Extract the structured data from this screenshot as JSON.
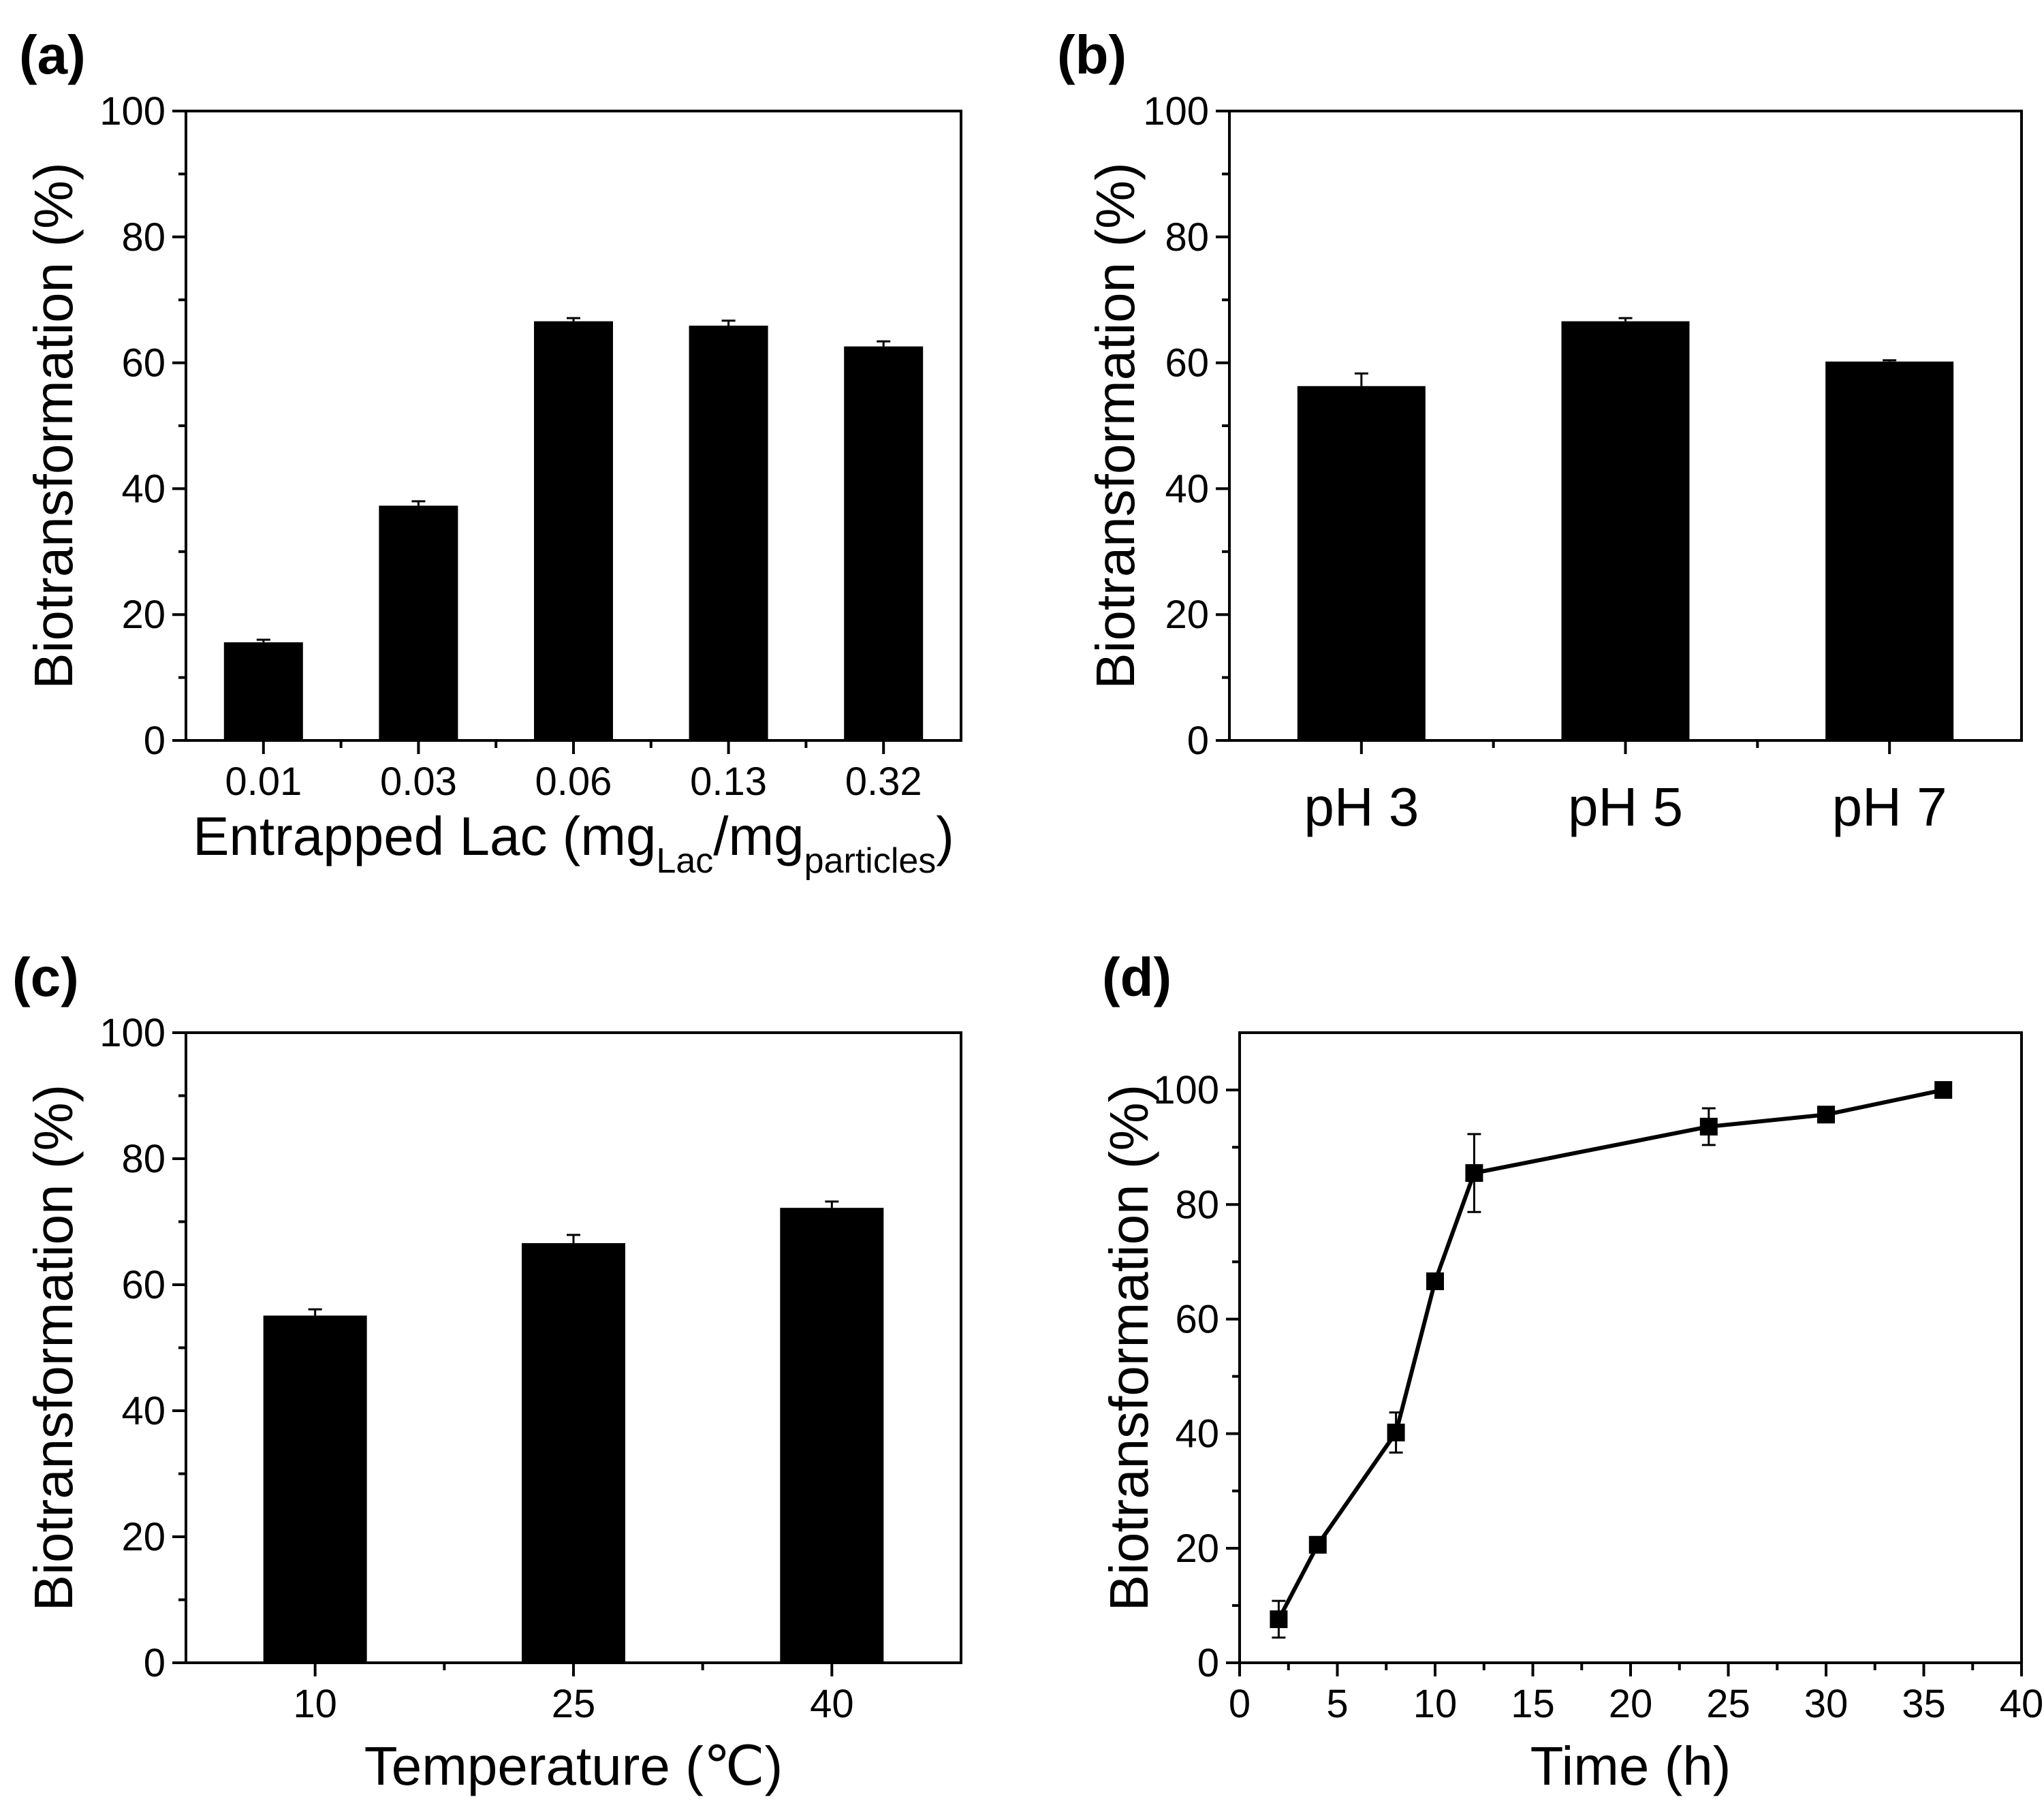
{
  "figure": {
    "colors": {
      "ink": "#000000",
      "background": "#ffffff"
    }
  },
  "chart_data": [
    {
      "id": "a",
      "panel_label": "(a)",
      "type": "bar",
      "title": "",
      "categories": [
        "0.01",
        "0.03",
        "0.06",
        "0.13",
        "0.32"
      ],
      "values": [
        15.6,
        37.3,
        66.6,
        65.9,
        62.6
      ],
      "errors": [
        0.4,
        0.7,
        0.5,
        0.8,
        0.8
      ],
      "xlabel": {
        "main": "Entrapped Lac (mg",
        "sub1": "Lac",
        "mid": "/mg",
        "sub2": "particles",
        "end": ")"
      },
      "ylabel": "Biotransformation (%)",
      "ylim": [
        0,
        100
      ],
      "yticks": [
        "0",
        "20",
        "40",
        "60",
        "80",
        "100"
      ],
      "grid": false
    },
    {
      "id": "b",
      "panel_label": "(b)",
      "type": "bar",
      "title": "",
      "categories": [
        "pH 3",
        "pH 5",
        "pH 7"
      ],
      "values": [
        56.3,
        66.6,
        60.2
      ],
      "errors": [
        2.0,
        0.5,
        0.2
      ],
      "xlabel": "",
      "ylabel": "Biotransformation (%)",
      "ylim": [
        0,
        100
      ],
      "yticks": [
        "0",
        "20",
        "40",
        "60",
        "80",
        "100"
      ],
      "grid": false
    },
    {
      "id": "c",
      "panel_label": "(c)",
      "type": "bar",
      "title": "",
      "categories": [
        "10",
        "25",
        "40"
      ],
      "values": [
        55.1,
        66.6,
        72.2
      ],
      "errors": [
        1.0,
        1.3,
        1.0
      ],
      "xlabel": "Temperature (℃)",
      "ylabel": "Biotransformation (%)",
      "ylim": [
        0,
        100
      ],
      "yticks": [
        "0",
        "20",
        "40",
        "60",
        "80",
        "100"
      ],
      "grid": false
    },
    {
      "id": "d",
      "panel_label": "(d)",
      "type": "line",
      "title": "",
      "series": [
        {
          "name": "Biotransformation",
          "x": [
            2,
            4,
            8,
            10,
            12,
            24,
            30,
            36
          ],
          "values": [
            7.6,
            20.6,
            40.2,
            66.6,
            85.5,
            93.6,
            95.7,
            100
          ],
          "errors": [
            3.2,
            0.5,
            3.5,
            0.3,
            6.8,
            3.2,
            0.3,
            0.3
          ]
        }
      ],
      "xlabel": "Time (h)",
      "ylabel": "Biotransformation (%)",
      "xlim": [
        0,
        40
      ],
      "ylim": [
        0,
        110
      ],
      "xticks": [
        "0",
        "5",
        "10",
        "15",
        "20",
        "25",
        "30",
        "35",
        "40"
      ],
      "yticks": [
        "0",
        "20",
        "40",
        "60",
        "80",
        "100"
      ],
      "grid": false
    }
  ]
}
